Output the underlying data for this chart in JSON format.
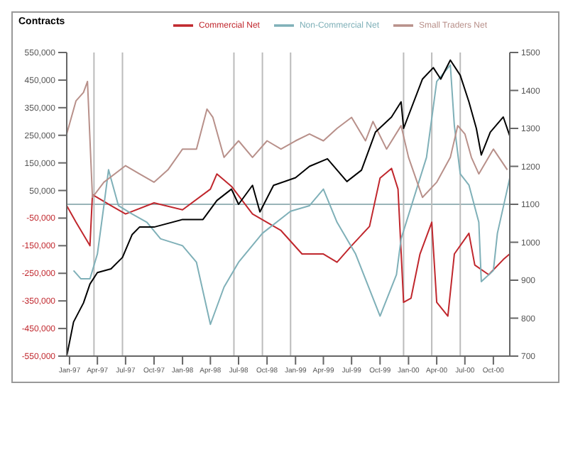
{
  "chart_data": {
    "type": "line",
    "ylabel": "Contracts",
    "legend": "top",
    "xlim": [
      "1996-12-23",
      "2000-11-23"
    ],
    "xticks": [
      {
        "value": "1997-01-01",
        "label": "Jan-97"
      },
      {
        "value": "1997-04-01",
        "label": "Apr-97"
      },
      {
        "value": "1997-07-01",
        "label": "Jul-97"
      },
      {
        "value": "1997-10-01",
        "label": "Oct-97"
      },
      {
        "value": "1998-01-01",
        "label": "Jan-98"
      },
      {
        "value": "1998-04-01",
        "label": "Apr-98"
      },
      {
        "value": "1998-07-01",
        "label": "Jul-98"
      },
      {
        "value": "1998-10-01",
        "label": "Oct-98"
      },
      {
        "value": "1999-01-01",
        "label": "Jan-99"
      },
      {
        "value": "1999-04-01",
        "label": "Apr-99"
      },
      {
        "value": "1999-07-01",
        "label": "Jul-99"
      },
      {
        "value": "1999-10-01",
        "label": "Oct-99"
      },
      {
        "value": "2000-01-01",
        "label": "Jan-00"
      },
      {
        "value": "2000-04-01",
        "label": "Apr-00"
      },
      {
        "value": "2000-07-01",
        "label": "Jul-00"
      },
      {
        "value": "2000-10-01",
        "label": "Oct-00"
      }
    ],
    "ylim": [
      -550000,
      550000
    ],
    "yticks": [
      {
        "value": -550000,
        "label": "-550,000"
      },
      {
        "value": -450000,
        "label": "-450,000"
      },
      {
        "value": -350000,
        "label": "-350,000"
      },
      {
        "value": -250000,
        "label": "-250,000"
      },
      {
        "value": -150000,
        "label": "-150,000"
      },
      {
        "value": -50000,
        "label": "-50,000"
      },
      {
        "value": 50000,
        "label": "50,000"
      },
      {
        "value": 150000,
        "label": "150,000"
      },
      {
        "value": 250000,
        "label": "250,000"
      },
      {
        "value": 350000,
        "label": "350,000"
      },
      {
        "value": 450000,
        "label": "450,000"
      },
      {
        "value": 550000,
        "label": "550,000"
      }
    ],
    "y2lim": [
      700,
      1500
    ],
    "y2ticks": [
      700,
      800,
      900,
      1000,
      1100,
      1200,
      1300,
      1400,
      1500
    ],
    "ref_lines": [
      {
        "axis": "y",
        "value": 0,
        "color": "#9ab4b8"
      },
      {
        "axis": "x",
        "value": "1997-03-21",
        "color": "#bbbbbb"
      },
      {
        "axis": "x",
        "value": "1997-06-21",
        "color": "#bbbbbb"
      },
      {
        "axis": "x",
        "value": "1998-06-16",
        "color": "#bbbbbb"
      },
      {
        "axis": "x",
        "value": "1998-09-16",
        "color": "#bbbbbb"
      },
      {
        "axis": "x",
        "value": "1998-12-16",
        "color": "#bbbbbb"
      },
      {
        "axis": "x",
        "value": "1999-12-16",
        "color": "#bbbbbb"
      },
      {
        "axis": "x",
        "value": "2000-03-16",
        "color": "#bbbbbb"
      },
      {
        "axis": "x",
        "value": "2000-06-16",
        "color": "#bbbbbb"
      }
    ],
    "series": [
      {
        "name": "Commercial Net",
        "color": "#c0272d",
        "x": [
          "1996-12-23",
          "1997-01-22",
          "1997-03-08",
          "1997-03-16",
          "1997-05-15",
          "1997-07-01",
          "1997-10-01",
          "1998-01-01",
          "1998-04-01",
          "1998-04-22",
          "1998-06-08",
          "1998-08-15",
          "1998-11-15",
          "1999-01-22",
          "1999-04-01",
          "1999-05-15",
          "1999-07-01",
          "1999-08-28",
          "1999-10-01",
          "1999-11-07",
          "1999-11-28",
          "1999-12-16",
          "2000-01-09",
          "2000-02-07",
          "2000-03-16",
          "2000-04-01",
          "2000-05-07",
          "2000-05-28",
          "2000-07-14",
          "2000-08-02",
          "2000-09-16",
          "2000-11-02",
          "2000-11-23"
        ],
        "values": [
          -5000,
          -65000,
          -150000,
          35000,
          -5000,
          -35000,
          5000,
          -20000,
          55000,
          110000,
          65000,
          -35000,
          -95000,
          -180000,
          -180000,
          -210000,
          -150000,
          -80000,
          95000,
          130000,
          55000,
          -355000,
          -340000,
          -180000,
          -65000,
          -355000,
          -405000,
          -180000,
          -105000,
          -220000,
          -255000,
          -200000,
          -180000
        ]
      },
      {
        "name": "Non-Commercial Net",
        "color": "#7fb0b8",
        "x": [
          "1997-01-14",
          "1997-02-07",
          "1997-03-08",
          "1997-04-01",
          "1997-04-22",
          "1997-05-07",
          "1997-06-08",
          "1997-07-22",
          "1997-09-08",
          "1997-10-22",
          "1998-01-01",
          "1998-02-15",
          "1998-04-01",
          "1998-05-15",
          "1998-07-01",
          "1998-09-16",
          "1998-12-16",
          "1999-02-15",
          "1999-04-01",
          "1999-05-15",
          "1999-07-14",
          "1999-10-01",
          "1999-11-23",
          "1999-12-08",
          "2000-02-28",
          "2000-04-01",
          "2000-05-15",
          "2000-05-28",
          "2000-06-16",
          "2000-07-14",
          "2000-08-15",
          "2000-08-23",
          "2000-10-01",
          "2000-10-14",
          "2000-11-15",
          "2000-11-23"
        ],
        "values": [
          -240000,
          -270000,
          -270000,
          -180000,
          -5000,
          125000,
          -5000,
          -35000,
          -65000,
          -125000,
          -150000,
          -210000,
          -435000,
          -300000,
          -210000,
          -105000,
          -25000,
          -5000,
          55000,
          -65000,
          -180000,
          -405000,
          -255000,
          -125000,
          170000,
          445000,
          505000,
          285000,
          110000,
          70000,
          -65000,
          -280000,
          -240000,
          -105000,
          55000,
          95000
        ]
      },
      {
        "name": "Small Traders Net",
        "color": "#b8908a",
        "x": [
          "1996-12-23",
          "1997-01-22",
          "1997-02-15",
          "1997-02-28",
          "1997-03-16",
          "1997-04-22",
          "1997-07-01",
          "1997-08-15",
          "1997-10-01",
          "1997-11-15",
          "1998-01-01",
          "1998-02-15",
          "1998-03-21",
          "1998-04-09",
          "1998-05-15",
          "1998-07-01",
          "1998-08-15",
          "1998-10-01",
          "1998-11-15",
          "1999-01-01",
          "1999-02-15",
          "1999-04-01",
          "1999-05-15",
          "1999-07-01",
          "1999-08-15",
          "1999-09-08",
          "1999-10-22",
          "1999-12-08",
          "2000-01-01",
          "2000-02-15",
          "2000-04-01",
          "2000-05-15",
          "2000-06-08",
          "2000-07-01",
          "2000-07-22",
          "2000-08-15",
          "2000-10-01",
          "2000-11-15"
        ],
        "values": [
          255000,
          375000,
          405000,
          445000,
          25000,
          80000,
          140000,
          110000,
          80000,
          125000,
          200000,
          200000,
          345000,
          315000,
          170000,
          230000,
          170000,
          230000,
          200000,
          230000,
          255000,
          230000,
          275000,
          315000,
          230000,
          300000,
          200000,
          285000,
          170000,
          25000,
          80000,
          170000,
          285000,
          255000,
          170000,
          110000,
          200000,
          125000
        ]
      },
      {
        "color": "#000000",
        "axis": "y2",
        "x": [
          "1996-12-23",
          "1997-01-14",
          "1997-02-15",
          "1997-03-08",
          "1997-04-01",
          "1997-05-15",
          "1997-06-21",
          "1997-07-22",
          "1997-08-15",
          "1997-10-01",
          "1998-01-01",
          "1998-03-08",
          "1998-04-22",
          "1998-06-08",
          "1998-07-01",
          "1998-08-15",
          "1998-09-08",
          "1998-10-22",
          "1999-01-01",
          "1999-02-15",
          "1999-04-14",
          "1999-06-16",
          "1999-08-02",
          "1999-09-16",
          "1999-11-07",
          "1999-12-08",
          "1999-12-16",
          "2000-02-15",
          "2000-03-21",
          "2000-04-14",
          "2000-05-15",
          "2000-06-16",
          "2000-07-14",
          "2000-08-07",
          "2000-08-23",
          "2000-09-21",
          "2000-11-02",
          "2000-11-23"
        ],
        "values": [
          700,
          790,
          840,
          890,
          920,
          930,
          960,
          1020,
          1040,
          1040,
          1060,
          1060,
          1110,
          1140,
          1100,
          1150,
          1080,
          1150,
          1170,
          1200,
          1220,
          1160,
          1190,
          1290,
          1330,
          1370,
          1300,
          1430,
          1460,
          1430,
          1480,
          1440,
          1370,
          1300,
          1230,
          1290,
          1330,
          1280
        ]
      }
    ]
  }
}
